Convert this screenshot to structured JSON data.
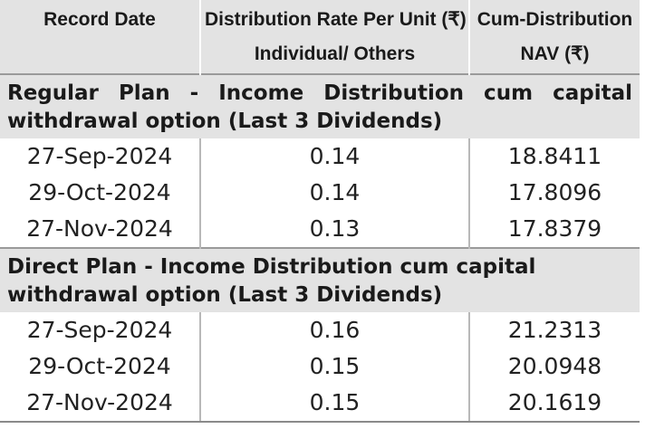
{
  "header": {
    "col1": "Record Date",
    "col2_line1": "Distribution Rate Per Unit  (₹)",
    "col2_line2": "Individual/ Others",
    "col3_line1": "Cum-Distribution",
    "col3_line2": "NAV (₹)"
  },
  "sections": [
    {
      "title": "Regular Plan - Income Distribution cum capital withdrawal option (Last 3 Dividends)",
      "rows": [
        {
          "date": "27-Sep-2024",
          "rate": "0.14",
          "nav": "18.8411"
        },
        {
          "date": "29-Oct-2024",
          "rate": "0.14",
          "nav": "17.8096"
        },
        {
          "date": "27-Nov-2024",
          "rate": "0.13",
          "nav": "17.8379"
        }
      ]
    },
    {
      "title": "Direct Plan - Income Distribution cum capital withdrawal option (Last 3 Dividends)",
      "rows": [
        {
          "date": "27-Sep-2024",
          "rate": "0.16",
          "nav": "21.2313"
        },
        {
          "date": "29-Oct-2024",
          "rate": "0.15",
          "nav": "20.0948"
        },
        {
          "date": "27-Nov-2024",
          "rate": "0.15",
          "nav": "20.1619"
        }
      ]
    }
  ]
}
